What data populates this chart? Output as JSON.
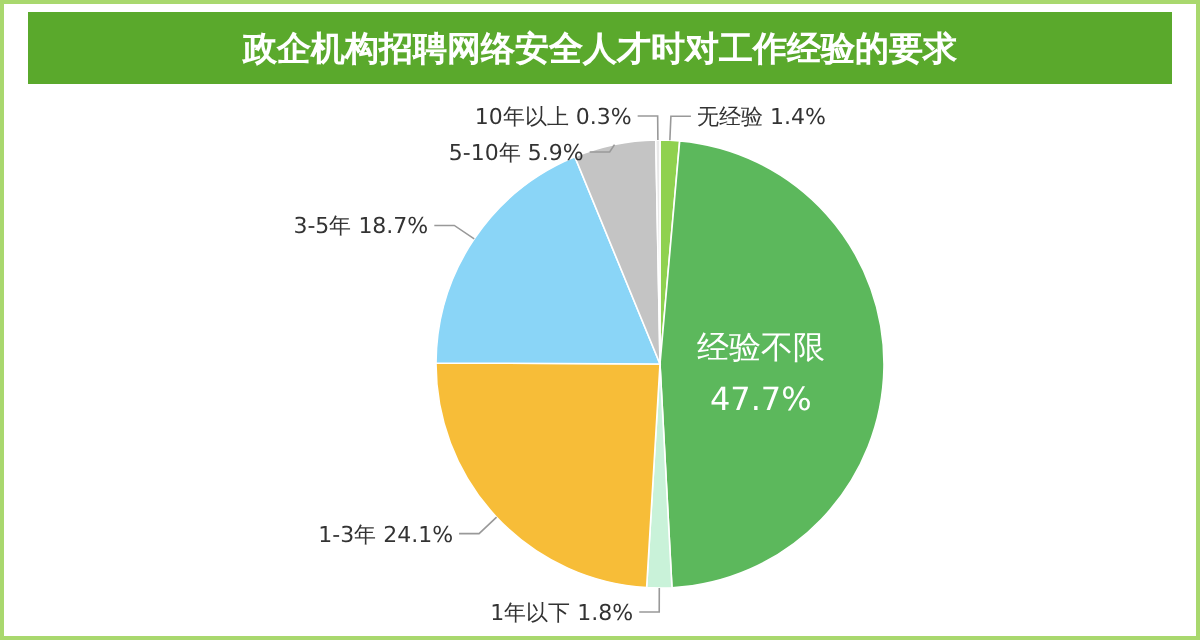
{
  "chart_data": {
    "type": "pie",
    "title": "政企机构招聘网络安全人才时对工作经验的要求",
    "categories": [
      "无经验",
      "经验不限",
      "1年以下",
      "1-3年",
      "3-5年",
      "5-10年",
      "10年以上"
    ],
    "values": [
      1.4,
      47.7,
      1.8,
      24.1,
      18.7,
      5.9,
      0.3
    ],
    "colors": [
      "#8fd14f",
      "#5cb85c",
      "#c9f2d9",
      "#f7bd38",
      "#8ad5f7",
      "#c4c4c4",
      "#e8e8e8"
    ],
    "value_labels": [
      "1.4%",
      "47.7%",
      "1.8%",
      "24.1%",
      "18.7%",
      "5.9%",
      "0.3%"
    ]
  }
}
